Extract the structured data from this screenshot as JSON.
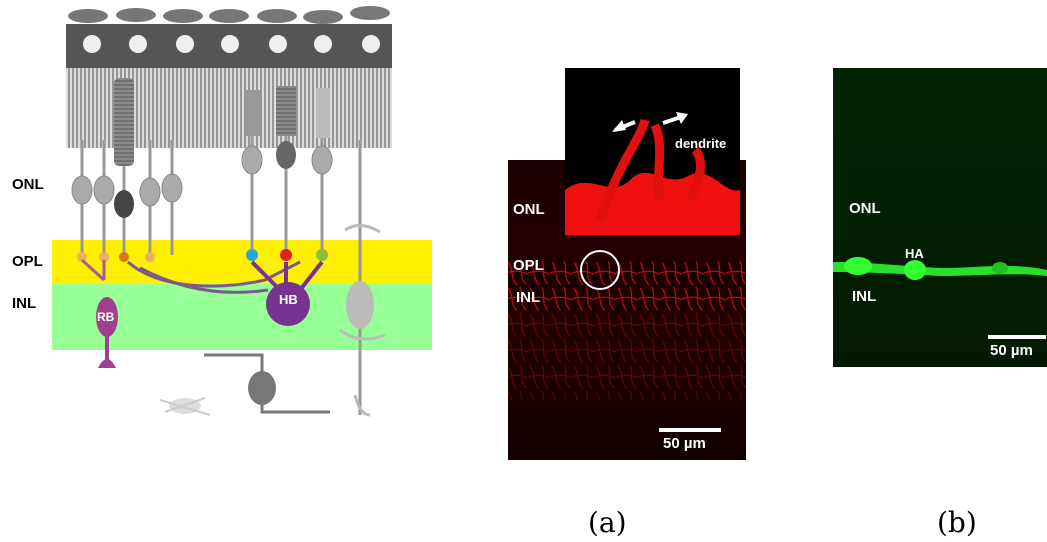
{
  "diagram": {
    "layers": [
      "ONL",
      "OPL",
      "INL"
    ],
    "cells": [
      "RB",
      "HB"
    ]
  },
  "panel_a": {
    "inset_label": "dendrite",
    "layers": [
      "ONL",
      "OPL",
      "INL"
    ],
    "scale_bar": "50 µm",
    "caption": "(a)"
  },
  "panel_b": {
    "layers": [
      "ONL",
      "INL"
    ],
    "cell": "HA",
    "scale_bar": "50 µm",
    "caption": "(b)"
  }
}
